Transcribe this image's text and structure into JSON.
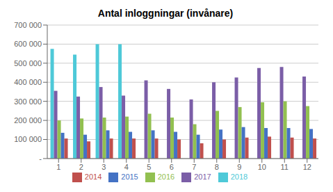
{
  "chart_data": {
    "type": "bar",
    "title": "Antal inloggningar (invånare)",
    "categories": [
      "1",
      "2",
      "3",
      "4",
      "5",
      "6",
      "7",
      "8",
      "9",
      "10",
      "11",
      "12"
    ],
    "series": [
      {
        "name": "2018",
        "color": "#4EC9D8",
        "values": [
          575000,
          545000,
          600000,
          600000,
          null,
          null,
          null,
          null,
          null,
          null,
          null,
          null
        ]
      },
      {
        "name": "2017",
        "color": "#7B5EA7",
        "values": [
          355000,
          325000,
          375000,
          330000,
          410000,
          365000,
          310000,
          400000,
          425000,
          475000,
          480000,
          430000
        ]
      },
      {
        "name": "2016",
        "color": "#92C050",
        "values": [
          200000,
          210000,
          215000,
          220000,
          235000,
          215000,
          180000,
          250000,
          270000,
          295000,
          300000,
          275000
        ]
      },
      {
        "name": "2015",
        "color": "#4472C4",
        "values": [
          135000,
          125000,
          148000,
          140000,
          148000,
          140000,
          125000,
          152000,
          165000,
          160000,
          160000,
          155000
        ]
      },
      {
        "name": "2014",
        "color": "#C0504D",
        "values": [
          105000,
          90000,
          105000,
          105000,
          105000,
          100000,
          80000,
          100000,
          110000,
          115000,
          110000,
          105000
        ]
      }
    ],
    "ylim": [
      0,
      700000
    ],
    "yticks": [
      {
        "value": 0,
        "label": "-"
      },
      {
        "value": 100000,
        "label": "100 000"
      },
      {
        "value": 200000,
        "label": "200 000"
      },
      {
        "value": 300000,
        "label": "300 000"
      },
      {
        "value": 400000,
        "label": "400 000"
      },
      {
        "value": 500000,
        "label": "500 000"
      },
      {
        "value": 600000,
        "label": "600 000"
      },
      {
        "value": 700000,
        "label": "700 000"
      }
    ],
    "grid": true,
    "legend": "bottom"
  }
}
